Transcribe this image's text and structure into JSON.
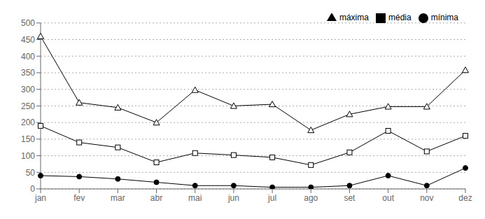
{
  "chart_data": {
    "type": "line",
    "categories": [
      "jan",
      "fev",
      "mar",
      "abr",
      "mai",
      "jun",
      "jul",
      "ago",
      "set",
      "out",
      "nov",
      "dez"
    ],
    "series": [
      {
        "name": "mínima",
        "color": "#000000",
        "marker": "circle",
        "values": [
          40,
          37,
          30,
          20,
          10,
          10,
          5,
          5,
          10,
          40,
          10,
          63
        ]
      },
      {
        "name": "média",
        "color": "#000000",
        "marker": "square",
        "values": [
          190,
          140,
          125,
          80,
          108,
          102,
          95,
          72,
          110,
          175,
          113,
          160
        ]
      },
      {
        "name": "máxima",
        "color": "#000000",
        "marker": "triangle",
        "values": [
          460,
          260,
          245,
          200,
          298,
          250,
          255,
          177,
          225,
          248,
          248,
          358
        ]
      }
    ],
    "ylim": [
      0,
      500
    ],
    "yticks": [
      0,
      50,
      100,
      150,
      200,
      250,
      300,
      350,
      400,
      450,
      500
    ],
    "grid": true,
    "legend": "upper right"
  }
}
